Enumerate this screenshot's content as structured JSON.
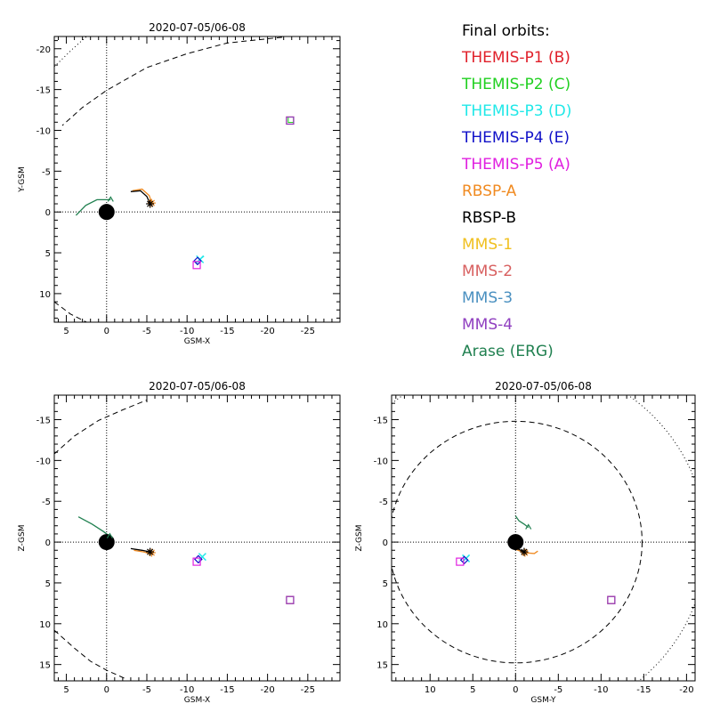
{
  "legend": {
    "title": "Final orbits:",
    "items": [
      {
        "label": "THEMIS-P1 (B)",
        "color": "#e0202a"
      },
      {
        "label": "THEMIS-P2 (C)",
        "color": "#20d020"
      },
      {
        "label": "THEMIS-P3 (D)",
        "color": "#20e8e8"
      },
      {
        "label": "THEMIS-P4 (E)",
        "color": "#1010c8"
      },
      {
        "label": "THEMIS-P5 (A)",
        "color": "#e020e0"
      },
      {
        "label": "RBSP-A",
        "color": "#f08a20"
      },
      {
        "label": "RBSP-B",
        "color": "#000000"
      },
      {
        "label": "MMS-1",
        "color": "#f0c020"
      },
      {
        "label": "MMS-2",
        "color": "#d86060"
      },
      {
        "label": "MMS-3",
        "color": "#4a90c0"
      },
      {
        "label": "MMS-4",
        "color": "#9040c0"
      },
      {
        "label": "Arase (ERG)",
        "color": "#208050"
      }
    ]
  },
  "chart_data": [
    {
      "type": "scatter",
      "title": "2020-07-05/06-08",
      "xlabel": "GSM-X",
      "ylabel": "Y-GSM",
      "xlim": [
        6.5,
        -29
      ],
      "ylim": [
        -21.5,
        13.5
      ],
      "xticks": [
        5,
        0,
        -5,
        -10,
        -15,
        -20,
        -25
      ],
      "yticks": [
        -20,
        -15,
        -10,
        -5,
        0,
        5,
        10
      ],
      "xtick_labels": [
        "5",
        "0",
        "-5",
        "-10",
        "-15",
        "-20",
        "-25"
      ],
      "ytick_labels": [
        "-20",
        "-15",
        "-10",
        "-5",
        "0",
        "5",
        "10"
      ],
      "earth": [
        0,
        0
      ],
      "points": [
        {
          "label": "THEMIS-P1 (B)",
          "x": -22.8,
          "y": -11.2
        },
        {
          "label": "THEMIS-P2 (C)",
          "x": -22.9,
          "y": -11.3
        },
        {
          "label": "THEMIS-P3 (D)",
          "x": -11.6,
          "y": 5.8
        },
        {
          "label": "THEMIS-P4 (E)",
          "x": -11.3,
          "y": 6.0
        },
        {
          "label": "THEMIS-P5 (A)",
          "x": -11.2,
          "y": 6.5
        },
        {
          "label": "RBSP-A",
          "x": -5.6,
          "y": -1.1
        },
        {
          "label": "RBSP-B",
          "x": -5.4,
          "y": -1.0
        },
        {
          "label": "MMS-4",
          "x": -22.8,
          "y": -11.2
        },
        {
          "label": "Arase (ERG)",
          "x": -0.5,
          "y": -1.5
        }
      ],
      "tracks": [
        {
          "label": "RBSP-A",
          "x": [
            -3.2,
            -4.4,
            -5.3,
            -5.6
          ],
          "y": [
            -2.6,
            -2.8,
            -2.0,
            -1.1
          ]
        },
        {
          "label": "RBSP-B",
          "x": [
            -3.0,
            -4.2,
            -5.0,
            -5.4
          ],
          "y": [
            -2.5,
            -2.6,
            -1.9,
            -1.0
          ]
        },
        {
          "label": "Arase (ERG)",
          "x": [
            3.8,
            2.6,
            1.2,
            -0.5
          ],
          "y": [
            0.4,
            -0.8,
            -1.5,
            -1.5
          ]
        },
        {
          "label": "THEMIS-P3 (D)",
          "x": [
            -12.1,
            -11.6
          ],
          "y": [
            5.4,
            5.8
          ]
        }
      ],
      "boundaries": [
        {
          "style": "dashed",
          "x": [
            -21.8,
            -15,
            -10,
            -5,
            0,
            3,
            5.5
          ],
          "y": [
            -21.4,
            -20.7,
            -19.4,
            -17.7,
            -14.9,
            -12.8,
            -10.6
          ]
        },
        {
          "style": "dashed",
          "x": [
            6.5,
            4.5,
            2.5
          ],
          "y": [
            11.0,
            12.5,
            13.5
          ]
        },
        {
          "style": "dotted",
          "x": [
            6.5,
            4.2,
            2.5
          ],
          "y": [
            -17.8,
            -20.0,
            -21.5
          ]
        }
      ]
    },
    {
      "type": "scatter",
      "title": "2020-07-05/06-08",
      "xlabel": "GSM-X",
      "ylabel": "Z-GSM",
      "xlim": [
        6.5,
        -29
      ],
      "ylim": [
        -18,
        17
      ],
      "xticks": [
        5,
        0,
        -5,
        -10,
        -15,
        -20,
        -25
      ],
      "yticks": [
        -15,
        -10,
        -5,
        0,
        5,
        10,
        15
      ],
      "xtick_labels": [
        "5",
        "0",
        "-5",
        "-10",
        "-15",
        "-20",
        "-25"
      ],
      "ytick_labels": [
        "-15",
        "-10",
        "-5",
        "0",
        "5",
        "10",
        "15"
      ],
      "earth": [
        0,
        0
      ],
      "points": [
        {
          "label": "THEMIS-P1 (B)",
          "x": -22.8,
          "y": 7.1
        },
        {
          "label": "THEMIS-P3 (D)",
          "x": -11.9,
          "y": 1.8
        },
        {
          "label": "THEMIS-P4 (E)",
          "x": -11.4,
          "y": 2.1
        },
        {
          "label": "THEMIS-P5 (A)",
          "x": -11.2,
          "y": 2.4
        },
        {
          "label": "RBSP-A",
          "x": -5.6,
          "y": 1.3
        },
        {
          "label": "RBSP-B",
          "x": -5.4,
          "y": 1.2
        },
        {
          "label": "MMS-4",
          "x": -22.8,
          "y": 7.1
        },
        {
          "label": "Arase (ERG)",
          "x": -0.4,
          "y": -0.7
        }
      ],
      "tracks": [
        {
          "label": "RBSP-A",
          "x": [
            -3.4,
            -4.6,
            -5.6
          ],
          "y": [
            1.0,
            1.2,
            1.5
          ]
        },
        {
          "label": "RBSP-B",
          "x": [
            -3.0,
            -4.4,
            -5.4
          ],
          "y": [
            0.8,
            1.0,
            1.2
          ]
        },
        {
          "label": "Arase (ERG)",
          "x": [
            3.5,
            1.8,
            0.4,
            -0.4
          ],
          "y": [
            -3.1,
            -2.2,
            -1.3,
            -0.7
          ]
        }
      ],
      "boundaries": [
        {
          "style": "dashed",
          "x": [
            6.5,
            4,
            2,
            0,
            -2.5
          ],
          "y": [
            10.8,
            13.0,
            14.6,
            15.7,
            16.8
          ]
        },
        {
          "style": "dashed",
          "x": [
            6.5,
            4,
            1,
            -2,
            -5
          ],
          "y": [
            -10.8,
            -13.0,
            -14.9,
            -16.2,
            -17.4
          ]
        }
      ]
    },
    {
      "type": "scatter",
      "title": "2020-07-05/06-08",
      "xlabel": "GSM-Y",
      "ylabel": "Z-GSM",
      "xlim": [
        14.5,
        -21
      ],
      "ylim": [
        -18,
        17
      ],
      "xticks": [
        10,
        5,
        0,
        -5,
        -10,
        -15,
        -20
      ],
      "yticks": [
        -15,
        -10,
        -5,
        0,
        5,
        10,
        15
      ],
      "xtick_labels": [
        "10",
        "5",
        "0",
        "-5",
        "-10",
        "-15",
        "-20"
      ],
      "ytick_labels": [
        "-15",
        "-10",
        "-5",
        "0",
        "5",
        "10",
        "15"
      ],
      "earth": [
        0,
        0
      ],
      "points": [
        {
          "label": "THEMIS-P1 (B)",
          "x": -11.2,
          "y": 7.1
        },
        {
          "label": "THEMIS-P3 (D)",
          "x": 5.8,
          "y": 2.0
        },
        {
          "label": "THEMIS-P4 (E)",
          "x": 6.0,
          "y": 2.2
        },
        {
          "label": "THEMIS-P5 (A)",
          "x": 6.5,
          "y": 2.4
        },
        {
          "label": "RBSP-A",
          "x": -1.1,
          "y": 1.3
        },
        {
          "label": "RBSP-B",
          "x": -1.0,
          "y": 1.2
        },
        {
          "label": "MMS-4",
          "x": -11.2,
          "y": 7.1
        },
        {
          "label": "Arase (ERG)",
          "x": -1.5,
          "y": -1.8
        }
      ],
      "tracks": [
        {
          "label": "RBSP-A",
          "x": [
            0.2,
            -1.0,
            -2.2,
            -2.6
          ],
          "y": [
            0.8,
            1.3,
            1.4,
            1.1
          ]
        },
        {
          "label": "RBSP-B",
          "x": [
            0.4,
            -0.4,
            -1.0
          ],
          "y": [
            0.6,
            0.9,
            1.2
          ]
        },
        {
          "label": "Arase (ERG)",
          "x": [
            0.0,
            -0.4,
            -1.0,
            -1.5
          ],
          "y": [
            -3.2,
            -2.6,
            -2.2,
            -1.8
          ]
        }
      ],
      "boundary_circles": [
        {
          "style": "dashed",
          "r": 14.8
        },
        {
          "style": "dotted",
          "r": 22.3
        }
      ]
    }
  ]
}
